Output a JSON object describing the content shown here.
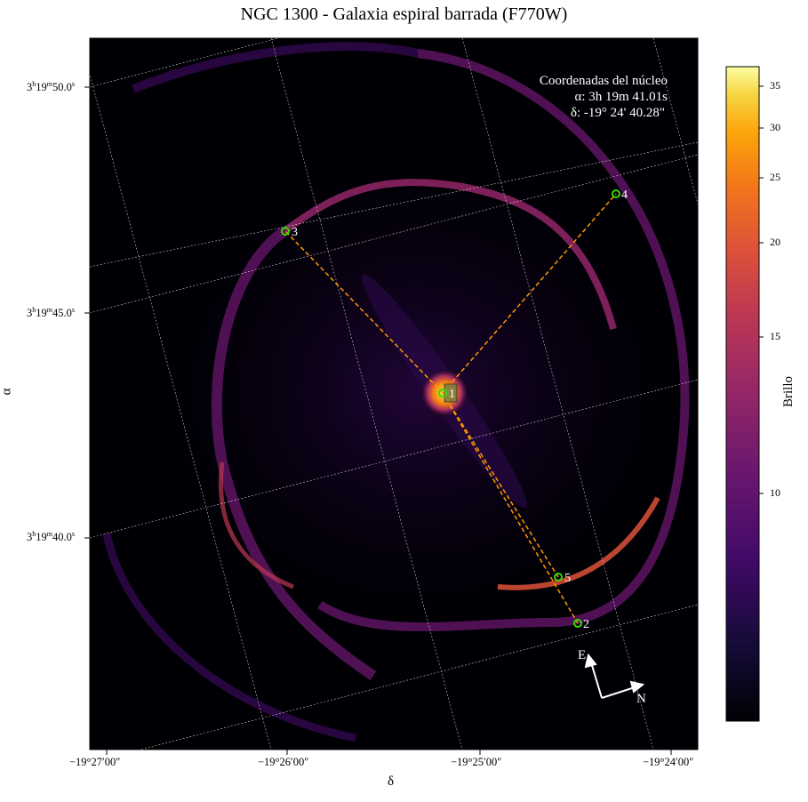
{
  "figure": {
    "title": "NGC 1300 - Galaxia espiral barrada (F770W)",
    "xlabel": "δ",
    "ylabel": "α",
    "x_ticks": [
      "−19°27′00″",
      "−19°26′00″",
      "−19°25′00″",
      "−19°24′00″"
    ],
    "y_ticks": [
      {
        "h": "3",
        "m": "19",
        "s": "50.0"
      },
      {
        "h": "3",
        "m": "19",
        "s": "45.0"
      },
      {
        "h": "3",
        "m": "19",
        "s": "40.0"
      }
    ],
    "colorbar": {
      "label": "Brillo",
      "ticks": [
        "35",
        "30",
        "25",
        "20",
        "15",
        "10"
      ],
      "colormap": "inferno"
    },
    "info_box": {
      "line1": "Coordenadas del núcleo",
      "line2": "α: 3h 19m 41.01s",
      "line3": "δ: -19° 24' 40.28\""
    },
    "markers": [
      "1",
      "2",
      "3",
      "4",
      "5"
    ],
    "compass": {
      "east": "E",
      "north": "N"
    },
    "colors": {
      "dashed_line": "#ff9900",
      "marker": "#33dd00",
      "background": "#000004"
    }
  }
}
